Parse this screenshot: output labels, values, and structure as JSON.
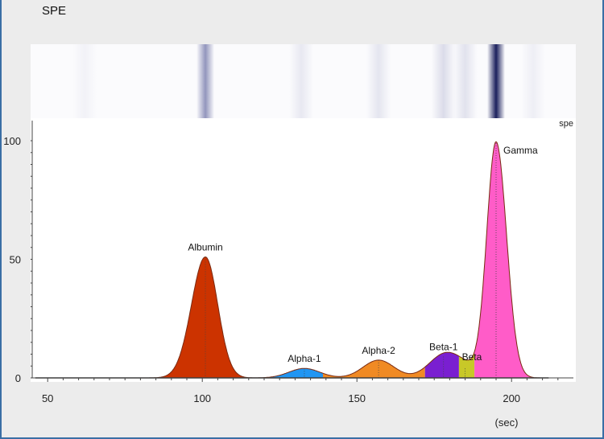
{
  "window": {
    "title": "SPE"
  },
  "chart_data": {
    "type": "area",
    "title": "",
    "series_label": "spe",
    "xunit_label": "(sec)",
    "xlim": [
      45,
      220
    ],
    "ylim": [
      0,
      100
    ],
    "x_ticks": [
      50,
      100,
      150,
      200
    ],
    "y_ticks": [
      0,
      50,
      100
    ],
    "grid": false,
    "fractions": [
      {
        "name": "Albumin",
        "peak_x": 101,
        "peak_y": 51,
        "from_x": 82,
        "to_x": 118,
        "color": "#cc3300"
      },
      {
        "name": "Alpha-1",
        "peak_x": 133,
        "peak_y": 4,
        "from_x": 118,
        "to_x": 139,
        "color": "#2196f3"
      },
      {
        "name": "Alpha-2",
        "peak_x": 157,
        "peak_y": 7.5,
        "from_x": 139,
        "to_x": 172,
        "color": "#f08a24"
      },
      {
        "name": "Beta-1",
        "peak_x": 178,
        "peak_y": 9,
        "from_x": 172,
        "to_x": 183,
        "color": "#7a1fd1"
      },
      {
        "name": "Beta",
        "peak_x": 185,
        "peak_y": 4,
        "from_x": 183,
        "to_x": 188,
        "color": "#c8c828"
      },
      {
        "name": "Gamma",
        "peak_x": 195,
        "peak_y": 99,
        "from_x": 188,
        "to_x": 210,
        "color": "#ff5cc8"
      }
    ],
    "gel_bands": [
      {
        "x": 101,
        "intensity": 0.65
      },
      {
        "x": 195,
        "intensity": 1.0
      },
      {
        "x": 132,
        "intensity": 0.12
      },
      {
        "x": 157,
        "intensity": 0.14
      },
      {
        "x": 178,
        "intensity": 0.2
      },
      {
        "x": 185,
        "intensity": 0.16
      },
      {
        "x": 62,
        "intensity": 0.06
      },
      {
        "x": 207,
        "intensity": 0.08
      }
    ]
  }
}
